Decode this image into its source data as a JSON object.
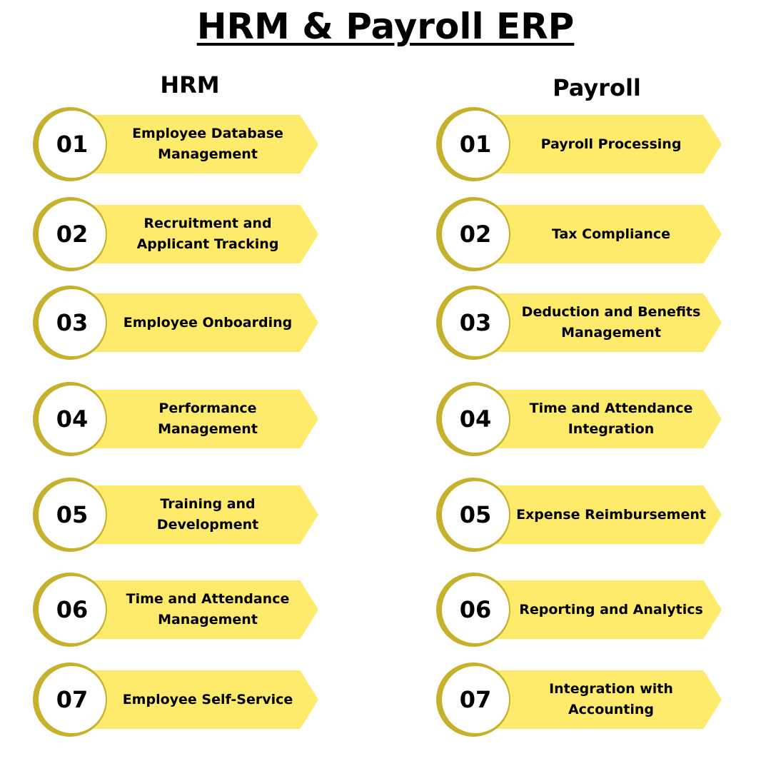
{
  "title": "HRM & Payroll ERP",
  "colors": {
    "arrow": "#feeb6b",
    "ring": "#c6b12c"
  },
  "columns": [
    {
      "heading": "HRM",
      "items": [
        {
          "number": "01",
          "label": "Employee Database Management"
        },
        {
          "number": "02",
          "label": "Recruitment and Applicant Tracking"
        },
        {
          "number": "03",
          "label": "Employee Onboarding"
        },
        {
          "number": "04",
          "label": "Performance Management"
        },
        {
          "number": "05",
          "label": "Training and Development"
        },
        {
          "number": "06",
          "label": "Time and Attendance Management"
        },
        {
          "number": "07",
          "label": "Employee Self-Service"
        }
      ]
    },
    {
      "heading": "Payroll",
      "items": [
        {
          "number": "01",
          "label": "Payroll Processing"
        },
        {
          "number": "02",
          "label": "Tax Compliance"
        },
        {
          "number": "03",
          "label": "Deduction and Benefits Management"
        },
        {
          "number": "04",
          "label": "Time and Attendance Integration"
        },
        {
          "number": "05",
          "label": "Expense Reimbursement"
        },
        {
          "number": "06",
          "label": "Reporting and Analytics"
        },
        {
          "number": "07",
          "label": "Integration with Accounting"
        }
      ]
    }
  ]
}
